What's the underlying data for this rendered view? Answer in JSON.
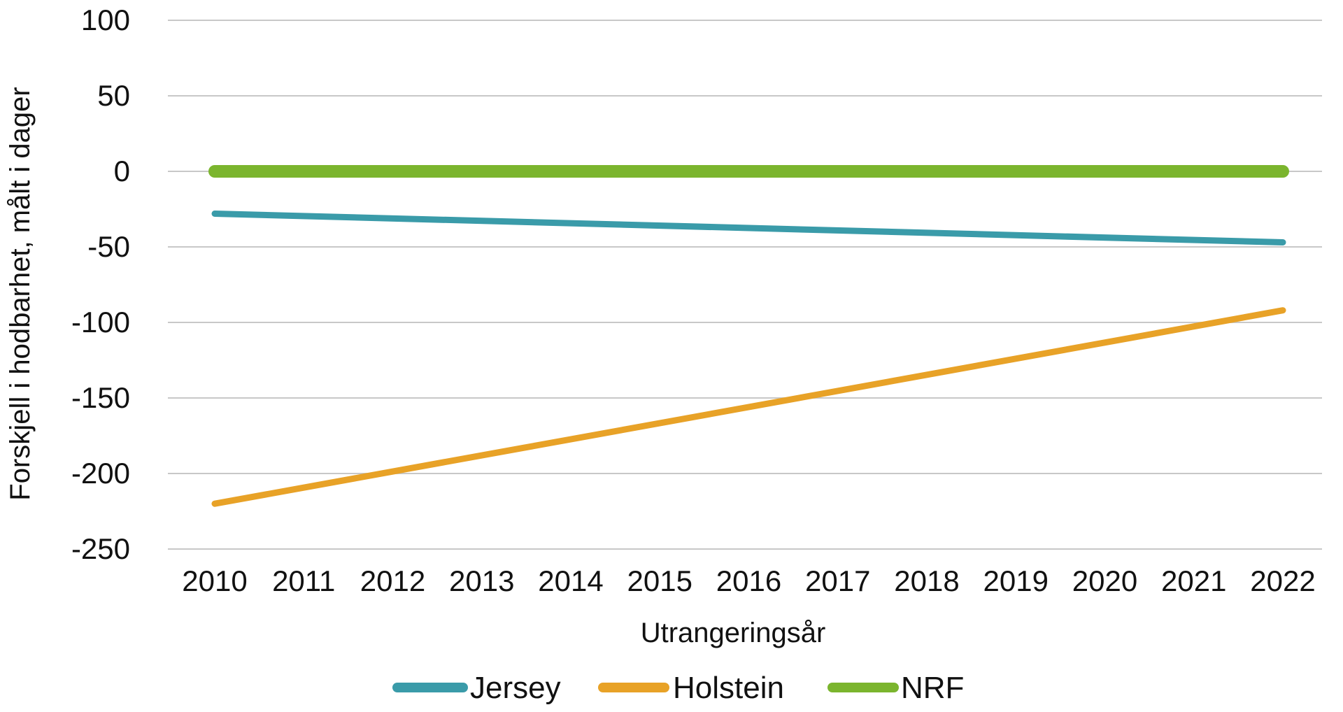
{
  "chart_data": {
    "type": "line",
    "title": "",
    "xlabel": "Utrangeringsår",
    "ylabel": "Forskjell i hodbarhet, målt i dager",
    "x": [
      "2010",
      "2011",
      "2012",
      "2013",
      "2014",
      "2015",
      "2016",
      "2017",
      "2018",
      "2019",
      "2020",
      "2021",
      "2022"
    ],
    "ylim": [
      -250,
      100
    ],
    "yticks": [
      100,
      50,
      0,
      -50,
      -100,
      -150,
      -200,
      -250
    ],
    "grid": true,
    "legend_position": "bottom",
    "series": [
      {
        "name": "Jersey",
        "color": "#3a9ba9",
        "points": [
          {
            "x": 2010,
            "y": -28
          },
          {
            "x": 2022,
            "y": -47
          }
        ]
      },
      {
        "name": "Holstein",
        "color": "#e8a227",
        "points": [
          {
            "x": 2010,
            "y": -220
          },
          {
            "x": 2022,
            "y": -92
          }
        ]
      },
      {
        "name": "NRF",
        "color": "#7bb52e",
        "points": [
          {
            "x": 2010,
            "y": 0
          },
          {
            "x": 2022,
            "y": 0
          }
        ]
      }
    ]
  }
}
